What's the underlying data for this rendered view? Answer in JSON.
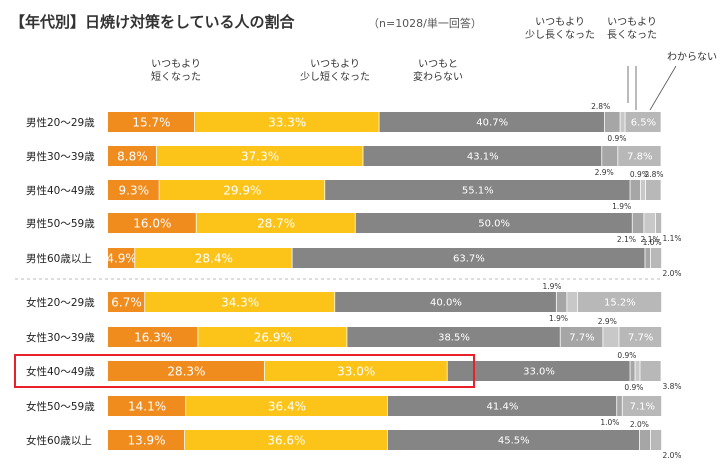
{
  "chart_data": {
    "type": "bar",
    "orientation": "horizontal",
    "stacked": true,
    "normalized_percent": true,
    "title": "【年代別】日焼け対策をしている人の割合",
    "subtitle": "（n=1028/単一回答）",
    "legend": [
      "いつもより\n短くなった",
      "いつもより\n少し短くなった",
      "いつもと\n変わらない",
      "いつもより\n少し長くなった",
      "いつもより\n長くなった",
      "わからない"
    ],
    "colors": [
      "#f08c1e",
      "#fcc419",
      "#858585",
      "#a6a6a6",
      "#c8c8c8",
      "#b8b8b8"
    ],
    "highlight_color": "#e8202a",
    "highlight_category": "女性40～49歳",
    "categories": [
      "男性20～29歳",
      "男性30～39歳",
      "男性40～49歳",
      "男性50～59歳",
      "男性60歳以上",
      "女性20～29歳",
      "女性30～39歳",
      "女性40～49歳",
      "女性50～59歳",
      "女性60歳以上"
    ],
    "series": [
      {
        "name": "いつもより短くなった",
        "values": [
          15.7,
          8.8,
          9.3,
          16.0,
          4.9,
          6.7,
          16.3,
          28.3,
          14.1,
          13.9
        ]
      },
      {
        "name": "いつもより少し短くなった",
        "values": [
          33.3,
          37.3,
          29.9,
          28.7,
          28.4,
          34.3,
          26.9,
          33.0,
          36.4,
          36.6
        ]
      },
      {
        "name": "いつもと変わらない",
        "values": [
          40.7,
          43.1,
          55.1,
          50.0,
          63.7,
          40.0,
          38.5,
          33.0,
          41.4,
          45.5
        ]
      },
      {
        "name": "いつもより少し長くなった",
        "values": [
          2.8,
          2.9,
          1.9,
          2.1,
          1.0,
          1.9,
          7.7,
          0.9,
          1.0,
          2.0
        ]
      },
      {
        "name": "いつもより長くなった",
        "values": [
          0.9,
          0.0,
          0.9,
          2.1,
          0.0,
          1.9,
          2.9,
          0.9,
          0.0,
          0.0
        ]
      },
      {
        "name": "わからない",
        "values": [
          6.5,
          7.8,
          2.8,
          1.1,
          2.0,
          15.2,
          7.7,
          3.8,
          7.1,
          2.0
        ]
      }
    ],
    "labels": [
      [
        "15.7%",
        "33.3%",
        "40.7%",
        "2.8%",
        "0.9%",
        "6.5%"
      ],
      [
        "8.8%",
        "37.3%",
        "43.1%",
        "2.9%",
        "",
        "7.8%"
      ],
      [
        "9.3%",
        "29.9%",
        "55.1%",
        "1.9%",
        "0.9%",
        "2.8%"
      ],
      [
        "16.0%",
        "28.7%",
        "50.0%",
        "2.1%",
        "2.1%",
        "1.1%"
      ],
      [
        "4.9%",
        "28.4%",
        "63.7%",
        "1.0%",
        "",
        "2.0%"
      ],
      [
        "6.7%",
        "34.3%",
        "40.0%",
        "1.9%",
        "1.9%",
        "15.2%"
      ],
      [
        "16.3%",
        "26.9%",
        "38.5%",
        "7.7%",
        "2.9%",
        "7.7%"
      ],
      [
        "28.3%",
        "33.0%",
        "33.0%",
        "0.9%",
        "0.9%",
        "3.8%"
      ],
      [
        "14.1%",
        "36.4%",
        "41.4%",
        "1.0%",
        "",
        "7.1%"
      ],
      [
        "13.9%",
        "36.6%",
        "45.5%",
        "2.0%",
        "",
        "2.0%"
      ]
    ]
  }
}
